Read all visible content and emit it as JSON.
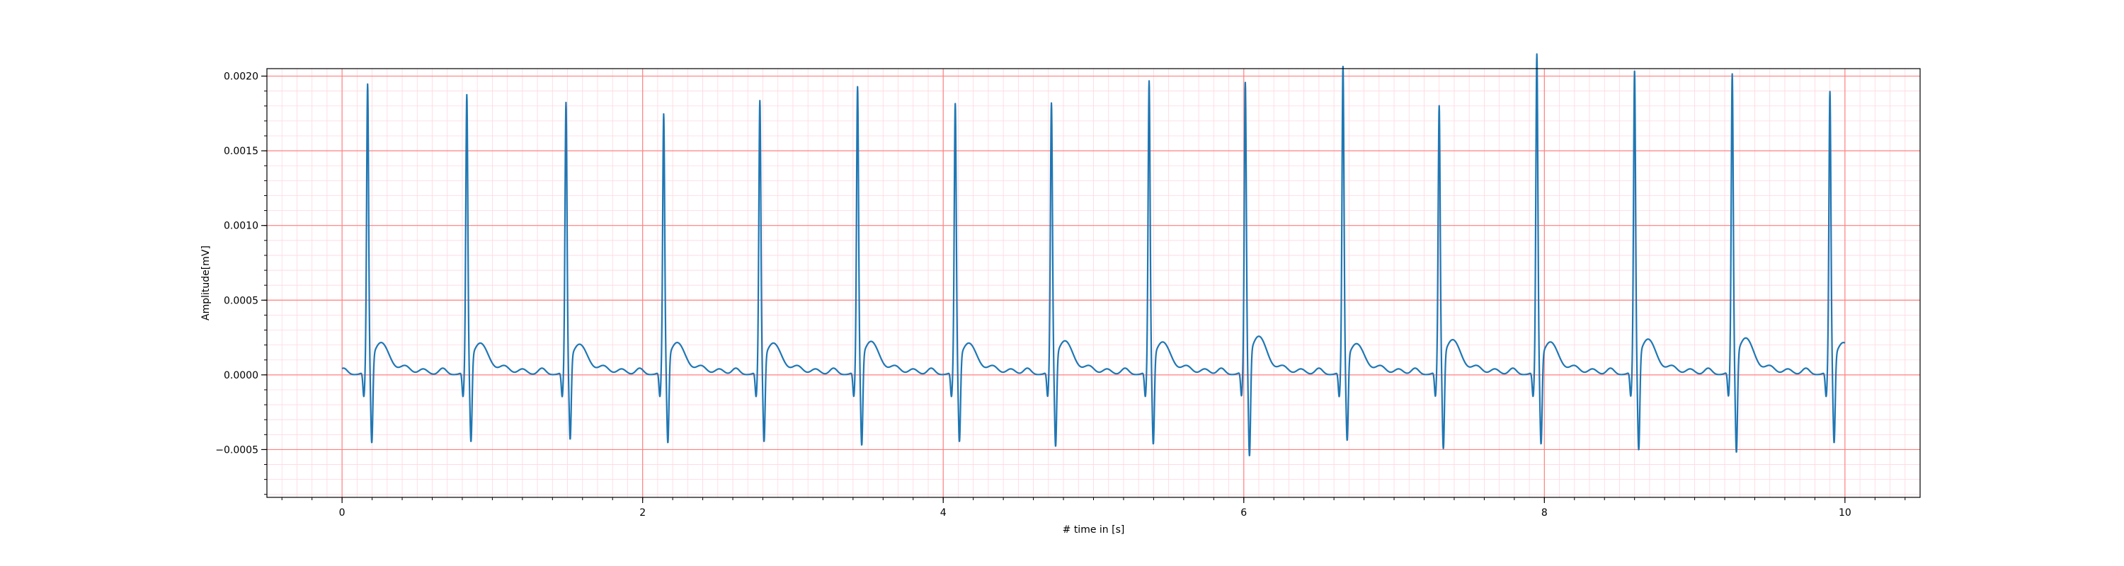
{
  "chart_data": {
    "type": "line",
    "title": "",
    "xlabel": "# time in [s]",
    "ylabel": "Amplitude[mV]",
    "xlim": [
      -0.5,
      10.5
    ],
    "ylim": [
      -0.00082,
      0.00205
    ],
    "x_ticks": [
      0,
      2,
      4,
      6,
      8,
      10
    ],
    "x_tick_labels": [
      "0",
      "2",
      "4",
      "6",
      "8",
      "10"
    ],
    "y_ticks": [
      -0.0005,
      0.0,
      0.0005,
      0.001,
      0.0015,
      0.002
    ],
    "y_tick_labels": [
      "−0.0005",
      "0.0000",
      "0.0005",
      "0.0010",
      "0.0015",
      "0.0020"
    ],
    "grid": {
      "major": true,
      "minor": true,
      "major_color": "#ff8080",
      "minor_color": "#ffd6e0"
    },
    "line_color": "#1f77b4",
    "series": [
      {
        "beats": [
          {
            "t": 0.17,
            "r": 0.00172,
            "s": -0.00057
          },
          {
            "t": 0.83,
            "r": 0.00165,
            "s": -0.00056
          },
          {
            "t": 1.49,
            "r": 0.0016,
            "s": -0.00054
          },
          {
            "t": 2.14,
            "r": 0.00152,
            "s": -0.00057
          },
          {
            "t": 2.78,
            "r": 0.00161,
            "s": -0.00056
          },
          {
            "t": 3.43,
            "r": 0.0017,
            "s": -0.00059
          },
          {
            "t": 4.08,
            "r": 0.00159,
            "s": -0.00056
          },
          {
            "t": 4.72,
            "r": 0.00159,
            "s": -0.0006
          },
          {
            "t": 5.37,
            "r": 0.00174,
            "s": -0.00058
          },
          {
            "t": 6.01,
            "r": 0.00172,
            "s": -0.00068
          },
          {
            "t": 6.66,
            "r": 0.00184,
            "s": -0.00055
          },
          {
            "t": 7.3,
            "r": 0.00157,
            "s": -0.00062
          },
          {
            "t": 7.95,
            "r": 0.00192,
            "s": -0.00058
          },
          {
            "t": 8.6,
            "r": 0.0018,
            "s": -0.00063
          },
          {
            "t": 9.25,
            "r": 0.00178,
            "s": -0.00065
          },
          {
            "t": 9.9,
            "r": 0.00167,
            "s": -0.00057
          }
        ]
      }
    ]
  }
}
